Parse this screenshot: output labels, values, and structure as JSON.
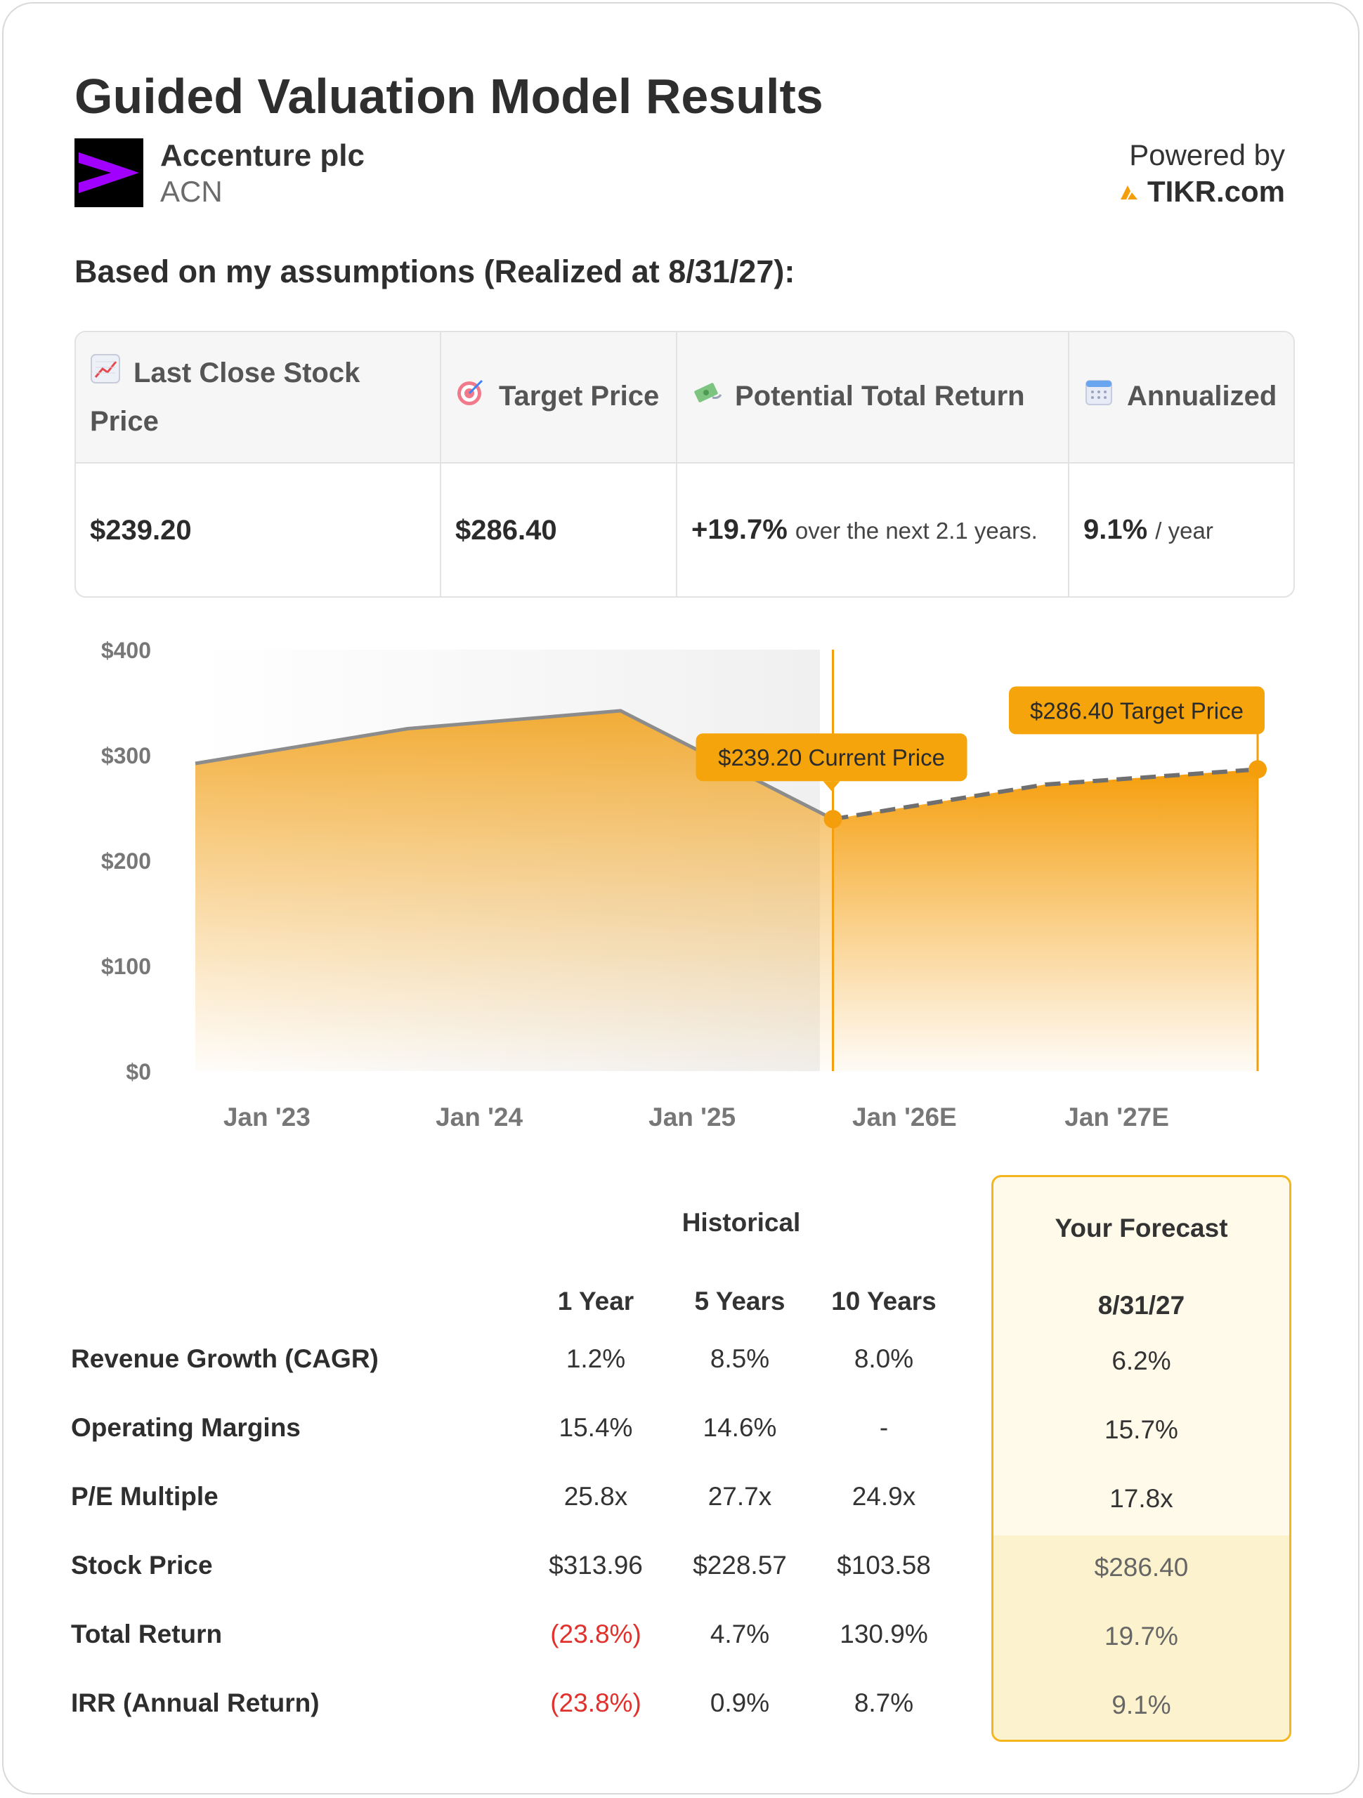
{
  "header": {
    "title": "Guided Valuation Model Results",
    "company_name": "Accenture plc",
    "ticker": "ACN",
    "powered_by": "Powered by",
    "brand": "TIKR.com"
  },
  "subheading": "Based on my assumptions (Realized at 8/31/27):",
  "metrics": {
    "last_close_label": "Last Close Stock Price",
    "last_close_value": "$239.20",
    "target_label": "Target Price",
    "target_value": "$286.40",
    "return_label": "Potential Total Return",
    "return_value": "+19.7%",
    "return_suffix": "over the next 2.1 years.",
    "annualized_label": "Annualized",
    "annualized_value": "9.1%",
    "annualized_suffix": "/ year"
  },
  "chart_data": {
    "type": "area",
    "y_ticks": [
      "$400",
      "$300",
      "$200",
      "$100",
      "$0"
    ],
    "ylim": [
      0,
      400
    ],
    "x_tick_labels": [
      "Jan '23",
      "Jan '24",
      "Jan '25",
      "Jan '26E",
      "Jan '27E"
    ],
    "series": [
      {
        "values": [
          {
            "x": "2022-08-31",
            "y": 292
          },
          {
            "x": "2023-08-31",
            "y": 325
          },
          {
            "x": "2024-08-31",
            "y": 342
          },
          {
            "x": "2025-08-31",
            "y": 239.2
          }
        ]
      },
      {
        "values": [
          {
            "x": "2025-08-31",
            "y": 239.2
          },
          {
            "x": "2026-08-31",
            "y": 272
          },
          {
            "x": "2027-08-31",
            "y": 286.4
          }
        ]
      }
    ],
    "annotations": [
      {
        "text": "$239.20 Current Price",
        "x": "2025-08-31",
        "y": 239.2
      },
      {
        "text": "$286.40 Target Price",
        "x": "2027-08-31",
        "y": 286.4
      }
    ],
    "colors": {
      "area": "#f5a623",
      "historical_line": "#8c8c8c",
      "forecast_line": "#6f6f6f",
      "marker": "#f59e0b",
      "label_bg": "#f5a50b"
    }
  },
  "table": {
    "historical_label": "Historical",
    "forecast_label": "Your Forecast",
    "col_1y": "1 Year",
    "col_5y": "5 Years",
    "col_10y": "10 Years",
    "forecast_date": "8/31/27",
    "rows": [
      {
        "label": "Revenue Growth (CAGR)",
        "y1": "1.2%",
        "y5": "8.5%",
        "y10": "8.0%",
        "forecast": "6.2%"
      },
      {
        "label": "Operating Margins",
        "y1": "15.4%",
        "y5": "14.6%",
        "y10": "-",
        "forecast": "15.7%"
      },
      {
        "label": "P/E Multiple",
        "y1": "25.8x",
        "y5": "27.7x",
        "y10": "24.9x",
        "forecast": "17.8x"
      },
      {
        "label": "Stock Price",
        "y1": "$313.96",
        "y5": "$228.57",
        "y10": "$103.58",
        "forecast": "$286.40"
      },
      {
        "label": "Total Return",
        "y1": "(23.8%)",
        "y5": "4.7%",
        "y10": "130.9%",
        "forecast": "19.7%"
      },
      {
        "label": "IRR (Annual Return)",
        "y1": "(23.8%)",
        "y5": "0.9%",
        "y10": "8.7%",
        "forecast": "9.1%"
      }
    ],
    "negative_color": "#e0312d",
    "forecast_border_color": "#f4b61f"
  }
}
